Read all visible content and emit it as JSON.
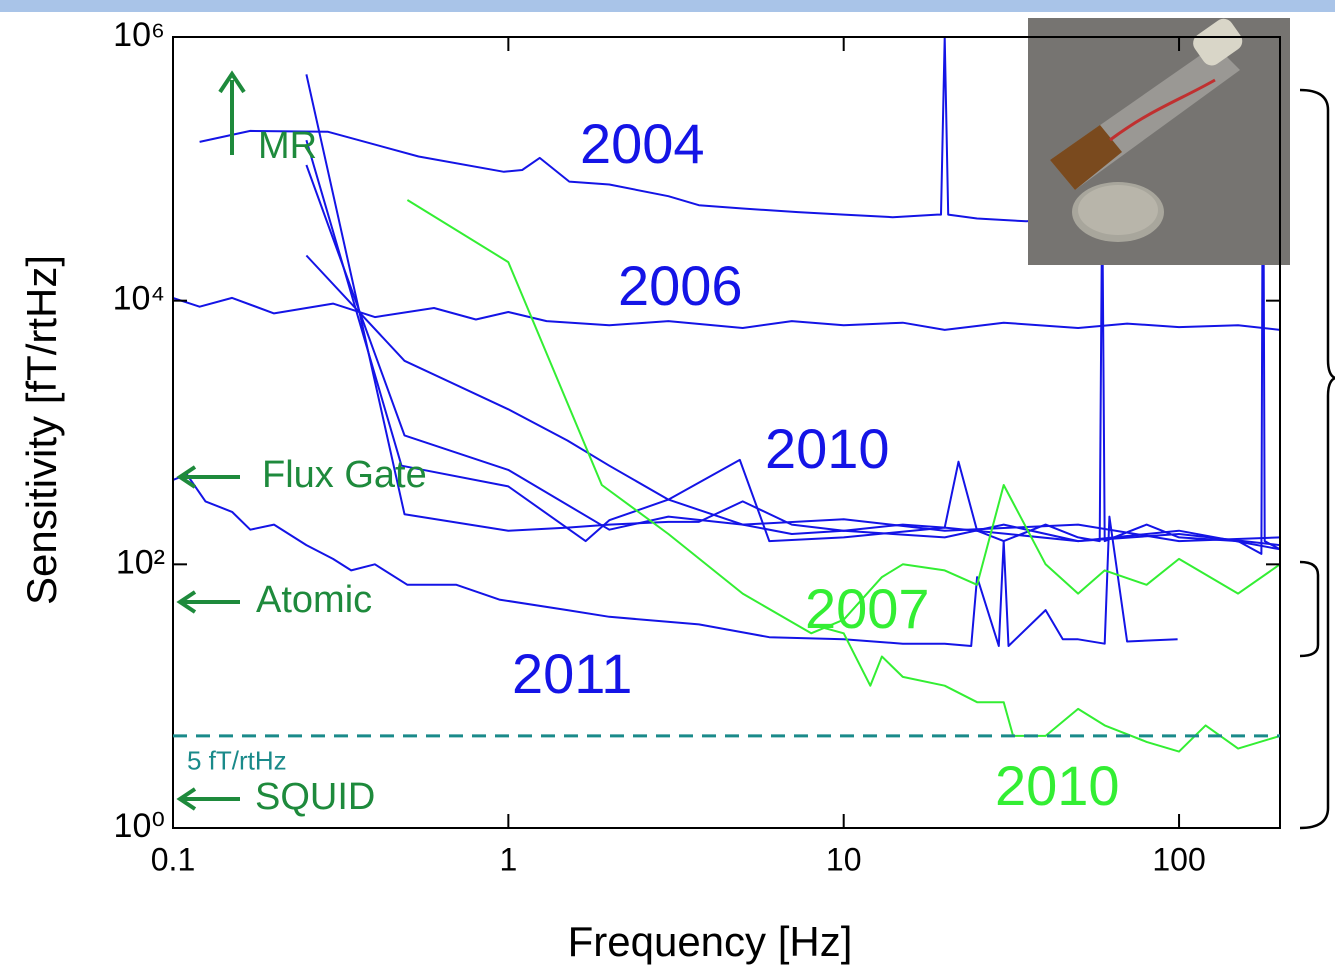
{
  "chart_data": {
    "type": "line",
    "x_label": "Frequency [Hz]",
    "y_label": "Sensitivity [fT/rtHz]",
    "x_log": true,
    "y_log": true,
    "xlim": [
      0.1,
      200
    ],
    "ylim": [
      1,
      1000000
    ],
    "xticks": [
      {
        "value": 0.1,
        "label": "0.1"
      },
      1,
      10,
      100
    ],
    "yticks": [
      {
        "value": 1,
        "label": "10⁰"
      },
      {
        "value": 100,
        "label": "10²"
      },
      {
        "value": 10000,
        "label": "10⁴"
      },
      {
        "value": 1000000,
        "label": "10⁶"
      }
    ],
    "reference_line": {
      "value": 5,
      "label": "5 fT/rtHz",
      "color": "#1a8a8a"
    },
    "annotations": [
      {
        "text": "MR"
      },
      {
        "text": "Flux Gate"
      },
      {
        "text": "Atomic"
      },
      {
        "text": "SQUID"
      }
    ],
    "annotation_color": "#1e8a3c",
    "series": [
      {
        "name": "2004",
        "color": "#1414e6",
        "x": [
          0.12,
          0.17,
          0.29,
          0.54,
          0.97,
          1.1,
          1.24,
          1.52,
          2,
          3,
          3.7,
          5,
          7.3,
          10,
          14,
          19,
          19.5,
          20,
          20.5,
          25,
          35,
          50
        ],
        "values": [
          160000,
          194000,
          191000,
          124000,
          95000,
          98000,
          121000,
          80000,
          76000,
          62000,
          53000,
          50000,
          47000,
          45000,
          43000,
          45000,
          45000,
          1000000,
          45000,
          42000,
          40000,
          42000
        ]
      },
      {
        "name": "2006",
        "color": "#1414e6",
        "x": [
          0.1,
          0.12,
          0.15,
          0.2,
          0.3,
          0.4,
          0.6,
          0.8,
          1,
          1.3,
          2,
          3,
          5,
          7,
          10,
          15,
          20,
          30,
          50,
          70,
          100,
          150,
          200
        ],
        "values": [
          10500,
          9000,
          10500,
          8000,
          9500,
          7500,
          8800,
          7200,
          8200,
          7000,
          6500,
          7000,
          6200,
          7000,
          6500,
          6800,
          6000,
          6800,
          6200,
          6700,
          6300,
          6500,
          6000
        ]
      },
      {
        "name": "2010",
        "color": "#1414e6",
        "x": [
          0.25,
          0.49,
          1,
          1.5,
          2,
          3,
          3.7,
          5,
          7,
          10,
          15,
          20,
          22,
          25,
          30,
          40,
          50,
          58,
          59,
          60,
          80,
          100,
          150,
          176,
          178,
          180,
          200
        ],
        "values": [
          520000,
          240,
          180,
          190,
          200,
          210,
          210,
          300,
          200,
          180,
          200,
          190,
          600,
          180,
          150,
          200,
          160,
          150,
          69000,
          150,
          200,
          160,
          150,
          120,
          600000,
          150,
          130
        ]
      },
      {
        "color": "#1414e6",
        "x": [
          0.25,
          0.48,
          1,
          1.7,
          2,
          3,
          5,
          7,
          10,
          20,
          30,
          50,
          100,
          200
        ],
        "values": [
          165000,
          560,
          390,
          150,
          216,
          310,
          200,
          170,
          180,
          160,
          200,
          150,
          170,
          140
        ]
      },
      {
        "color": "#1414e6",
        "x": [
          0.25,
          0.49,
          1,
          1.5,
          2,
          3,
          4.9,
          6,
          10,
          20,
          50,
          100,
          200
        ],
        "values": [
          22000,
          3500,
          1500,
          870,
          560,
          310,
          620,
          150,
          160,
          190,
          150,
          180,
          130
        ]
      },
      {
        "color": "#1414e6",
        "x": [
          0.25,
          0.49,
          1,
          2,
          3,
          5,
          10,
          20,
          50,
          100,
          200
        ],
        "values": [
          107000,
          950,
          520,
          183,
          230,
          200,
          220,
          180,
          200,
          150,
          160
        ]
      },
      {
        "name": "2011",
        "color": "#1414e6",
        "x": [
          0.1,
          0.11,
          0.125,
          0.15,
          0.17,
          0.2,
          0.25,
          0.3,
          0.34,
          0.4,
          0.5,
          0.7,
          0.94,
          1.5,
          2,
          3.7,
          6,
          10,
          15,
          20,
          24,
          25,
          29,
          30,
          31,
          40,
          45,
          50,
          60,
          62,
          70,
          99
        ],
        "values": [
          437,
          480,
          300,
          250,
          183,
          200,
          140,
          110,
          90,
          100,
          70,
          70,
          54,
          45,
          40,
          35,
          28,
          27,
          25,
          25,
          24,
          80,
          24,
          150,
          24,
          45,
          27,
          27,
          25,
          230,
          26,
          27
        ]
      },
      {
        "name": "2007",
        "color": "#33ee33",
        "x": [
          0.5,
          1,
          1.9,
          3,
          5,
          8,
          10,
          13,
          15,
          20,
          25,
          30,
          40,
          50,
          60,
          80,
          100,
          150,
          200
        ],
        "values": [
          58000,
          19600,
          400,
          170,
          60,
          30,
          38,
          80,
          100,
          90,
          70,
          400,
          100,
          60,
          90,
          70,
          110,
          60,
          100
        ]
      },
      {
        "name": "2010",
        "color": "#33ee33",
        "x": [
          8,
          10,
          12,
          13,
          15,
          20,
          25,
          30,
          32,
          40,
          50,
          60,
          80,
          100,
          120,
          150,
          200
        ],
        "values": [
          35,
          30,
          12,
          20,
          14,
          12,
          9,
          9,
          5,
          5,
          8,
          6,
          4.5,
          3.8,
          6,
          4,
          5
        ]
      }
    ]
  }
}
